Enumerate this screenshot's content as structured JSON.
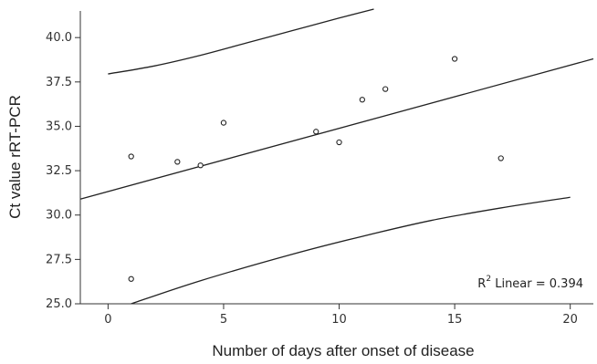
{
  "chart_data": {
    "type": "scatter",
    "xlabel": "Number of days after onset of disease",
    "ylabel": "Ct value rRT-PCR",
    "xlim": [
      -1.2,
      21
    ],
    "ylim": [
      25.0,
      41.5
    ],
    "x_ticks": [
      0,
      5,
      10,
      15,
      20
    ],
    "y_ticks": [
      25.0,
      27.5,
      30.0,
      32.5,
      35.0,
      37.5,
      40.0
    ],
    "x_tick_labels": [
      "0",
      "5",
      "10",
      "15",
      "20"
    ],
    "y_tick_labels": [
      "25.0",
      "27.5",
      "30.0",
      "32.5",
      "35.0",
      "37.5",
      "40.0"
    ],
    "grid": false,
    "points": [
      {
        "x": 1,
        "y": 33.3
      },
      {
        "x": 1,
        "y": 26.4
      },
      {
        "x": 3,
        "y": 33.0
      },
      {
        "x": 4,
        "y": 32.8
      },
      {
        "x": 5,
        "y": 35.2
      },
      {
        "x": 9,
        "y": 34.7
      },
      {
        "x": 10,
        "y": 34.1
      },
      {
        "x": 11,
        "y": 36.5
      },
      {
        "x": 12,
        "y": 37.1
      },
      {
        "x": 15,
        "y": 38.8
      },
      {
        "x": 17,
        "y": 33.2
      }
    ],
    "fit_line": {
      "x": [
        -1.2,
        21
      ],
      "y": [
        30.9,
        38.8
      ]
    },
    "upper_band": {
      "x": [
        0,
        2,
        4,
        6,
        8,
        10,
        11.5
      ],
      "y": [
        37.95,
        38.4,
        39.0,
        39.7,
        40.4,
        41.1,
        41.6
      ]
    },
    "lower_band": {
      "x": [
        1,
        4,
        8,
        11,
        14,
        17,
        20
      ],
      "y": [
        25.0,
        26.3,
        27.8,
        28.8,
        29.7,
        30.4,
        31.0
      ]
    },
    "annotation": {
      "prefix": "R",
      "superscript": "2",
      "text": " Linear = 0.394"
    }
  }
}
